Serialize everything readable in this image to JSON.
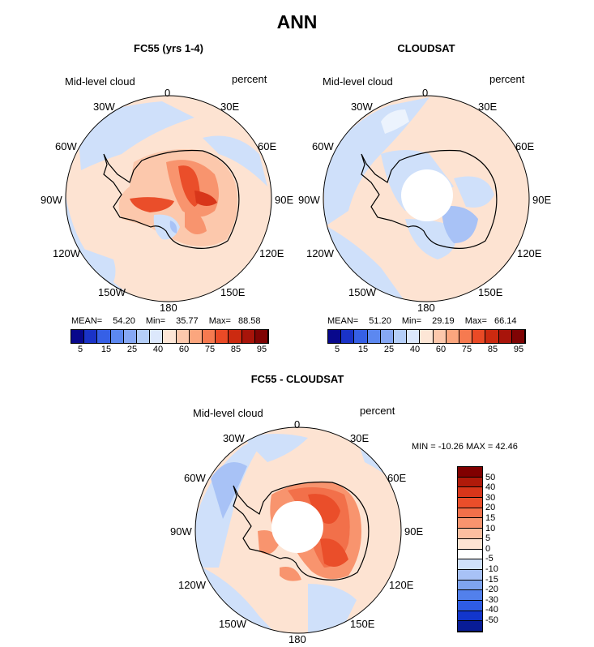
{
  "title": "ANN",
  "panels": [
    {
      "title": "FC55 (yrs 1-4)",
      "variable": "Mid-level cloud",
      "units": "percent",
      "lon_labels": [
        "0",
        "30E",
        "60E",
        "90E",
        "120E",
        "150E",
        "180",
        "150W",
        "120W",
        "90W",
        "60W",
        "30W"
      ],
      "stats": {
        "mean_label": "MEAN=",
        "mean": "54.20",
        "min_label": "Min=",
        "min": "35.77",
        "max_label": "Max=",
        "max": "88.58"
      },
      "colorbar_labels": [
        "5",
        "15",
        "25",
        "40",
        "60",
        "75",
        "85",
        "95"
      ]
    },
    {
      "title": "CLOUDSAT",
      "variable": "Mid-level cloud",
      "units": "percent",
      "lon_labels": [
        "0",
        "30E",
        "60E",
        "90E",
        "120E",
        "150E",
        "180",
        "150W",
        "120W",
        "90W",
        "60W",
        "30W"
      ],
      "stats": {
        "mean_label": "MEAN=",
        "mean": "51.20",
        "min_label": "Min=",
        "min": "29.19",
        "max_label": "Max=",
        "max": "66.14"
      },
      "colorbar_labels": [
        "5",
        "15",
        "25",
        "40",
        "60",
        "75",
        "85",
        "95"
      ]
    },
    {
      "title": "FC55 - CLOUDSAT",
      "variable": "Mid-level cloud",
      "units": "percent",
      "lon_labels": [
        "0",
        "30E",
        "60E",
        "90E",
        "120E",
        "150E",
        "180",
        "150W",
        "120W",
        "90W",
        "60W",
        "30W"
      ],
      "minmax_text": "MIN = -10.26 MAX =  42.46",
      "colorbar_labels": [
        "50",
        "40",
        "30",
        "20",
        "15",
        "10",
        "5",
        "0",
        "-5",
        "-10",
        "-15",
        "-20",
        "-30",
        "-40",
        "-50"
      ]
    }
  ],
  "colors": {
    "abs_scale": [
      "#08088c",
      "#1a33c8",
      "#3660e6",
      "#5c88f0",
      "#86a8f4",
      "#b4cef8",
      "#dce8fc",
      "#fde6d6",
      "#fcc8ac",
      "#fba67e",
      "#f67a50",
      "#ea4a26",
      "#cc2a10",
      "#a8140a",
      "#800404"
    ],
    "diff_scale": [
      "#800000",
      "#b01a0a",
      "#d8361a",
      "#ea4e2a",
      "#f2704a",
      "#f8946e",
      "#fcbea0",
      "#fde3d2",
      "#ffffff",
      "#cfe0fa",
      "#a8c2f6",
      "#7ea4f0",
      "#5280ec",
      "#2e5ce4",
      "#1236cc",
      "#081c96"
    ],
    "land_light_blue": "#cfe0fa",
    "ocean_peach": "#fde3d2"
  }
}
